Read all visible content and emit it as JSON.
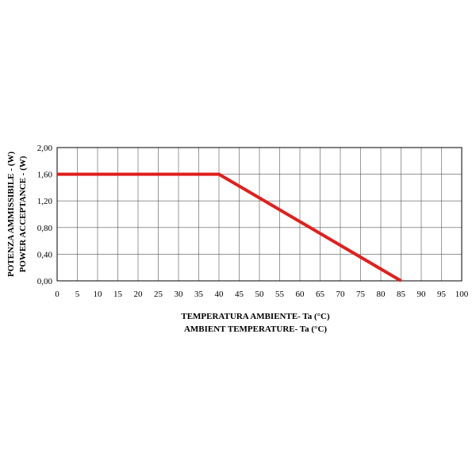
{
  "chart_data": {
    "type": "line",
    "title": "",
    "xlabel_lines": [
      "TEMPERATURA AMBIENTE- Ta (°C)",
      "AMBIENT TEMPERATURE- Ta (°C)"
    ],
    "ylabel_lines": [
      "POTENZA AMMISSIBILE - (W)",
      "POWER ACCEPTANCE - (W)"
    ],
    "xlim": [
      0,
      100
    ],
    "ylim": [
      0,
      2
    ],
    "x_ticks": [
      0,
      5,
      10,
      15,
      20,
      25,
      30,
      35,
      40,
      45,
      50,
      55,
      60,
      65,
      70,
      75,
      80,
      85,
      90,
      95,
      100
    ],
    "x_tick_labels": [
      "0",
      "5",
      "10",
      "15",
      "20",
      "25",
      "30",
      "35",
      "40",
      "45",
      "50",
      "55",
      "60",
      "65",
      "70",
      "75",
      "80",
      "85",
      "90",
      "95",
      "100"
    ],
    "y_ticks": [
      0,
      0.4,
      0.8,
      1.2,
      1.6,
      2.0
    ],
    "y_tick_labels": [
      "0,00",
      "0,40",
      "0,80",
      "1,20",
      "1,60",
      "2,00"
    ],
    "grid": true,
    "legend": "none",
    "series": [
      {
        "color": "#e0201c",
        "x": [
          0,
          40,
          85
        ],
        "y": [
          1.6,
          1.6,
          0
        ]
      }
    ]
  }
}
